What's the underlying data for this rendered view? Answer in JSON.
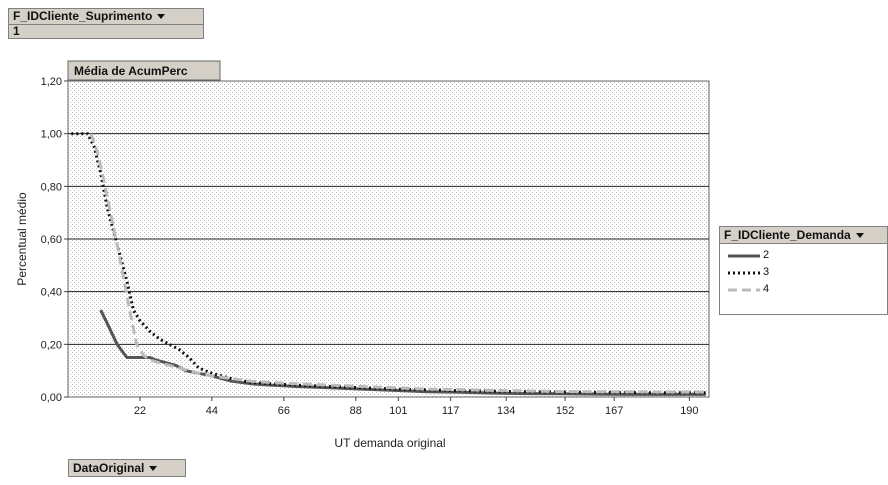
{
  "filter": {
    "field_label": "F_IDCliente_Suprimento",
    "field_value": "1"
  },
  "category_field_label": "DataOriginal",
  "legend": {
    "title": "F_IDCliente_Demanda",
    "items": [
      {
        "label": "2",
        "color": "#555555",
        "style": "solid"
      },
      {
        "label": "3",
        "color": "#111111",
        "style": "dotted"
      },
      {
        "label": "4",
        "color": "#bbbbbb",
        "style": "dashed"
      }
    ]
  },
  "chart_data": {
    "type": "line",
    "title": "Média de AcumPerc",
    "xlabel": "UT demanda original",
    "ylabel": "Percentual médio",
    "ylim": [
      0,
      1.2
    ],
    "yticks": [
      "0,00",
      "0,20",
      "0,40",
      "0,60",
      "0,80",
      "1,00",
      "1,20"
    ],
    "xlim": [
      0,
      196
    ],
    "xticks": [
      "22",
      "44",
      "66",
      "88",
      "101",
      "117",
      "134",
      "152",
      "167",
      "190"
    ],
    "grid": "horizontal",
    "legend_position": "right",
    "series": [
      {
        "name": "2",
        "x": [
          10,
          12,
          15,
          18,
          22,
          25,
          27,
          30,
          33,
          36,
          40,
          44,
          50,
          56,
          62,
          70,
          80,
          90,
          100,
          110,
          120,
          130,
          140,
          150,
          160,
          170,
          180,
          190,
          195
        ],
        "y": [
          0.33,
          0.28,
          0.2,
          0.15,
          0.15,
          0.15,
          0.14,
          0.13,
          0.12,
          0.1,
          0.09,
          0.08,
          0.06,
          0.05,
          0.045,
          0.04,
          0.035,
          0.03,
          0.025,
          0.02,
          0.018,
          0.015,
          0.013,
          0.012,
          0.011,
          0.01,
          0.01,
          0.01,
          0.01
        ]
      },
      {
        "name": "3",
        "x": [
          1,
          4,
          6,
          8,
          10,
          12,
          15,
          18,
          20,
          22,
          25,
          28,
          31,
          34,
          37,
          40,
          44,
          50,
          56,
          62,
          70,
          80,
          90,
          100,
          110,
          120,
          130,
          140,
          150,
          160,
          170,
          180,
          190,
          195
        ],
        "y": [
          1.0,
          1.0,
          1.0,
          0.95,
          0.85,
          0.72,
          0.58,
          0.44,
          0.33,
          0.29,
          0.25,
          0.22,
          0.2,
          0.18,
          0.15,
          0.11,
          0.09,
          0.07,
          0.055,
          0.05,
          0.045,
          0.04,
          0.035,
          0.03,
          0.027,
          0.024,
          0.022,
          0.02,
          0.019,
          0.018,
          0.017,
          0.016,
          0.016,
          0.016
        ]
      },
      {
        "name": "4",
        "x": [
          7,
          9,
          11,
          13,
          15,
          17,
          19,
          21,
          23,
          25,
          28,
          31,
          34,
          37,
          40,
          44,
          50,
          56,
          62,
          70,
          80,
          90,
          100,
          110,
          120,
          130,
          140,
          150,
          160,
          170,
          180,
          190,
          195
        ],
        "y": [
          1.0,
          0.93,
          0.82,
          0.7,
          0.58,
          0.45,
          0.32,
          0.2,
          0.16,
          0.14,
          0.13,
          0.12,
          0.11,
          0.1,
          0.09,
          0.08,
          0.07,
          0.06,
          0.055,
          0.05,
          0.045,
          0.04,
          0.035,
          0.03,
          0.028,
          0.025,
          0.023,
          0.021,
          0.02,
          0.02,
          0.019,
          0.019,
          0.019
        ]
      }
    ]
  }
}
